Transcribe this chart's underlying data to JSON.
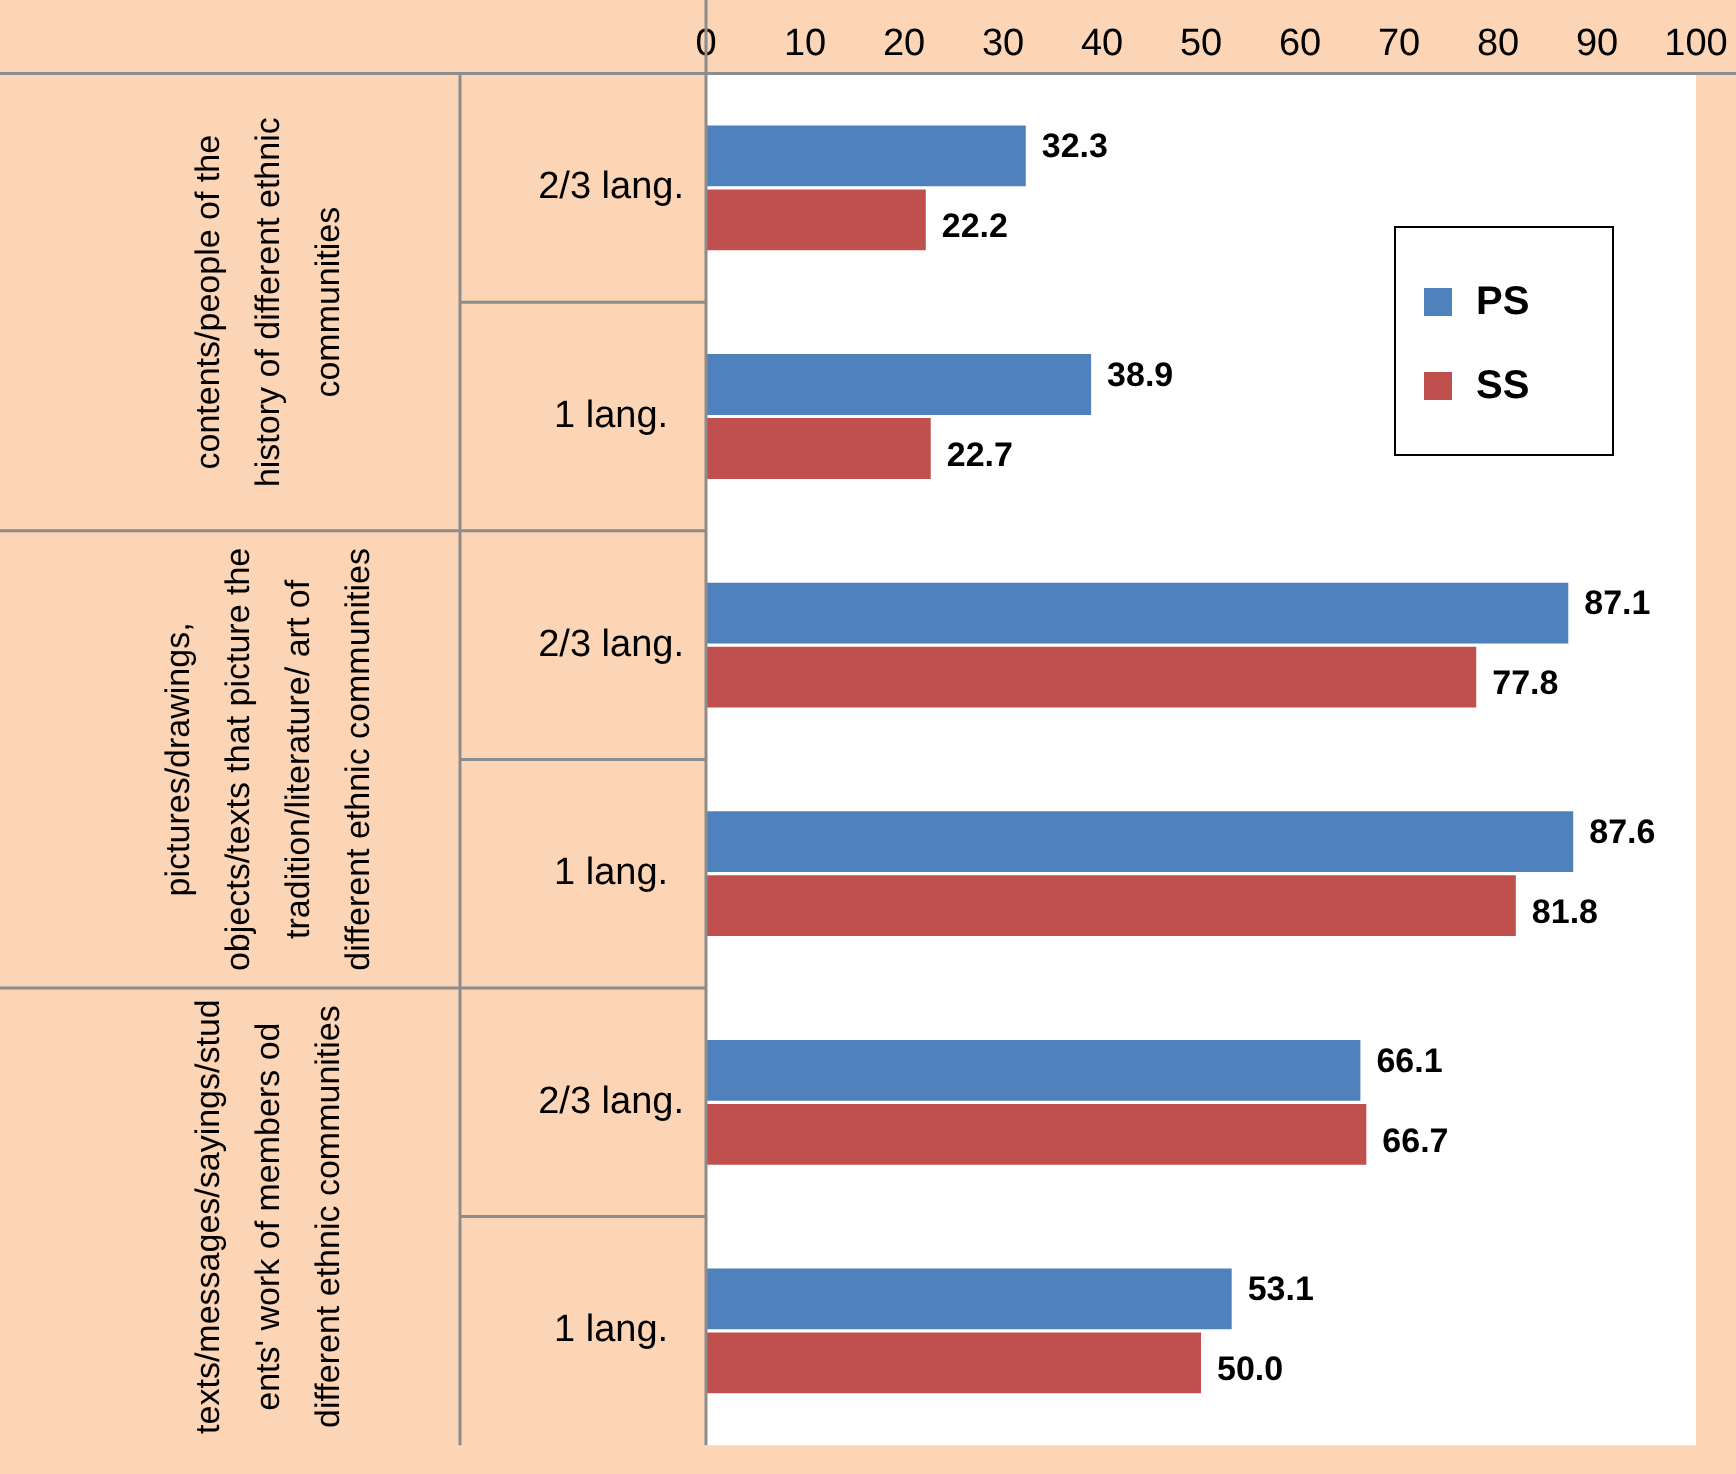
{
  "chart_data": {
    "type": "bar",
    "orientation": "horizontal",
    "categories": [
      "2/3 lang.",
      "1 lang.",
      "2/3 lang.",
      "1 lang.",
      "2/3 lang.",
      "1 lang."
    ],
    "series": [
      {
        "name": "PS",
        "color": "#4f81bd",
        "values": [
          32.3,
          38.9,
          87.1,
          87.6,
          66.1,
          53.1
        ],
        "value_labels": [
          "32.3",
          "38.9",
          "87.1",
          "87.6",
          "66.1",
          "53.1"
        ]
      },
      {
        "name": "SS",
        "color": "#c0504d",
        "values": [
          22.2,
          22.7,
          77.8,
          81.8,
          66.7,
          50.0
        ],
        "value_labels": [
          "22.2",
          "22.7",
          "77.8",
          "81.8",
          "66.7",
          "50.0"
        ]
      }
    ],
    "xlim": [
      0,
      100
    ],
    "xticks": [
      0,
      10,
      20,
      30,
      40,
      50,
      60,
      70,
      80,
      90,
      100
    ],
    "annotations": [
      "contents/people of the history of different ethnic communities",
      "pictures/drawings, objects/texts that picture the tradition/literature/ art of different ethnic communities",
      "texts/messages/sayings/students' work of members od different ethnic communities"
    ],
    "grid": false,
    "legend": "top right"
  }
}
